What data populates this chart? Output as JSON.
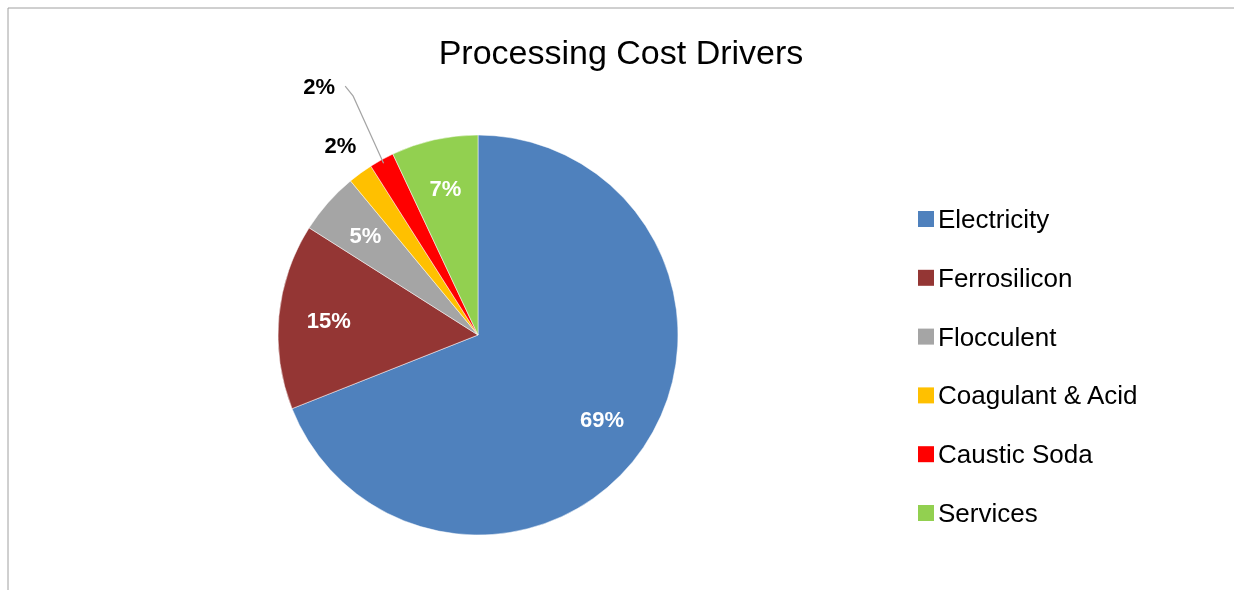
{
  "chart_data": {
    "type": "pie",
    "title": "Processing Cost Drivers",
    "categories": [
      "Electricity",
      "Ferrosilicon",
      "Flocculent",
      "Coagulant & Acid",
      "Caustic Soda",
      "Services"
    ],
    "values": [
      69,
      15,
      5,
      2,
      2,
      7
    ],
    "colors": [
      "#4f81bd",
      "#943634",
      "#a5a5a5",
      "#ffc000",
      "#ff0000",
      "#92d050"
    ],
    "value_labels": [
      "69%",
      "15%",
      "5%",
      "2%",
      "2%",
      "7%"
    ],
    "legend": "right"
  }
}
